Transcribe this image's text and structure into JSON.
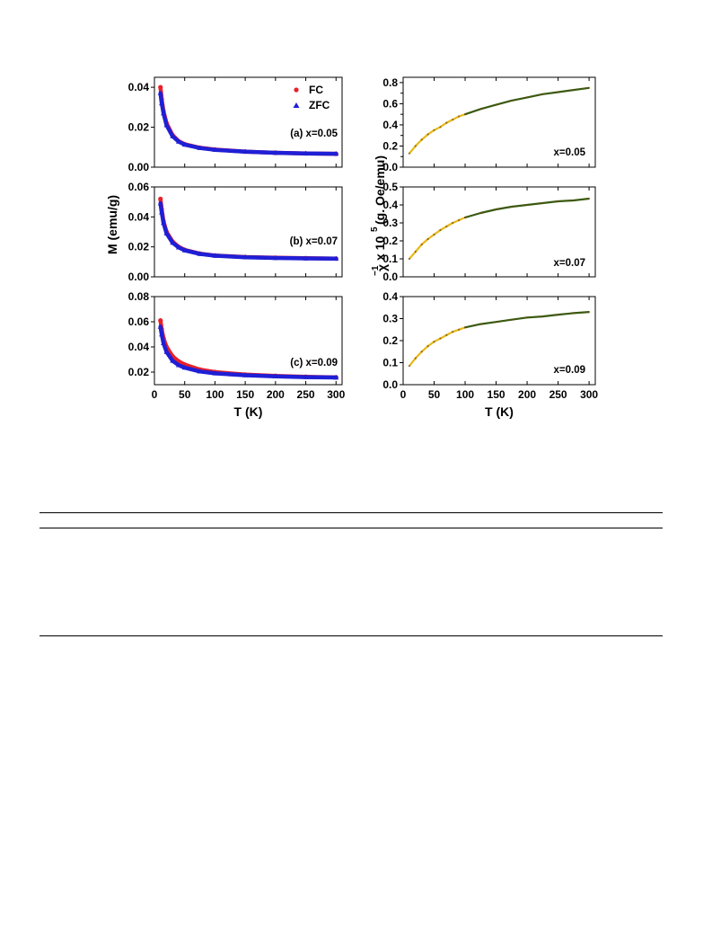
{
  "chart_data": [
    {
      "type": "scatter",
      "panel_label": "(a) x=0.05",
      "xlim": [
        0,
        310
      ],
      "ylim": [
        0,
        0.045
      ],
      "xticks": [
        0,
        50,
        100,
        150,
        200,
        250,
        300
      ],
      "yticks": [
        0.0,
        0.02,
        0.04
      ],
      "ytick_labels": [
        "0.00",
        "0.02",
        "0.04"
      ],
      "show_xtick_labels": false,
      "legend": {
        "position": "top-right",
        "entries": [
          "FC",
          "ZFC"
        ]
      },
      "series": [
        {
          "name": "FC",
          "color": "#e8202a",
          "marker": "circle",
          "x": [
            10,
            12,
            15,
            20,
            30,
            40,
            50,
            75,
            100,
            150,
            200,
            250,
            300
          ],
          "y": [
            0.04,
            0.034,
            0.028,
            0.022,
            0.016,
            0.013,
            0.0115,
            0.0097,
            0.0088,
            0.0078,
            0.0072,
            0.0069,
            0.0067
          ]
        },
        {
          "name": "ZFC",
          "color": "#1f1fd6",
          "marker": "triangle",
          "x": [
            10,
            12,
            15,
            20,
            30,
            40,
            50,
            75,
            100,
            150,
            200,
            250,
            300
          ],
          "y": [
            0.037,
            0.032,
            0.027,
            0.021,
            0.0155,
            0.0128,
            0.0113,
            0.0096,
            0.0087,
            0.0078,
            0.0072,
            0.0069,
            0.0067
          ]
        }
      ]
    },
    {
      "type": "scatter",
      "panel_label": "(b) x=0.07",
      "xlim": [
        0,
        310
      ],
      "ylim": [
        0,
        0.06
      ],
      "xticks": [
        0,
        50,
        100,
        150,
        200,
        250,
        300
      ],
      "yticks": [
        0.0,
        0.02,
        0.04,
        0.06
      ],
      "ytick_labels": [
        "0.00",
        "0.02",
        "0.04",
        "0.06"
      ],
      "show_xtick_labels": false,
      "series": [
        {
          "name": "FC",
          "color": "#e8202a",
          "marker": "circle",
          "x": [
            10,
            12,
            15,
            20,
            30,
            40,
            50,
            75,
            100,
            150,
            200,
            250,
            300
          ],
          "y": [
            0.052,
            0.045,
            0.037,
            0.03,
            0.0235,
            0.02,
            0.018,
            0.0155,
            0.0142,
            0.0132,
            0.0127,
            0.0124,
            0.0122
          ]
        },
        {
          "name": "ZFC",
          "color": "#1f1fd6",
          "marker": "triangle",
          "x": [
            10,
            12,
            15,
            20,
            30,
            40,
            50,
            75,
            100,
            150,
            200,
            250,
            300
          ],
          "y": [
            0.049,
            0.043,
            0.036,
            0.029,
            0.0228,
            0.0196,
            0.0177,
            0.0153,
            0.0141,
            0.0131,
            0.0126,
            0.0123,
            0.0121
          ]
        }
      ]
    },
    {
      "type": "scatter",
      "panel_label": "(c) x=0.09",
      "xlim": [
        0,
        310
      ],
      "ylim": [
        0.01,
        0.08
      ],
      "xticks": [
        0,
        50,
        100,
        150,
        200,
        250,
        300
      ],
      "yticks": [
        0.02,
        0.04,
        0.06,
        0.08
      ],
      "ytick_labels": [
        "0.02",
        "0.04",
        "0.06",
        "0.08"
      ],
      "show_xtick_labels": true,
      "xlabel": "T (K)",
      "series": [
        {
          "name": "FC",
          "color": "#e8202a",
          "marker": "circle",
          "x": [
            10,
            12,
            15,
            20,
            30,
            40,
            50,
            75,
            100,
            150,
            200,
            250,
            300
          ],
          "y": [
            0.061,
            0.054,
            0.047,
            0.04,
            0.0325,
            0.0285,
            0.026,
            0.022,
            0.02,
            0.018,
            0.017,
            0.0163,
            0.0158
          ]
        },
        {
          "name": "ZFC",
          "color": "#1f1fd6",
          "marker": "triangle",
          "x": [
            10,
            12,
            15,
            20,
            30,
            40,
            50,
            75,
            100,
            150,
            200,
            250,
            300
          ],
          "y": [
            0.056,
            0.05,
            0.043,
            0.036,
            0.029,
            0.0255,
            0.0235,
            0.0205,
            0.019,
            0.0175,
            0.0166,
            0.016,
            0.0157
          ]
        }
      ]
    },
    {
      "type": "line",
      "panel_label": "x=0.05",
      "xlim": [
        0,
        310
      ],
      "ylim": [
        0,
        0.85
      ],
      "xticks": [
        0,
        50,
        100,
        150,
        200,
        250,
        300
      ],
      "yticks": [
        0.0,
        0.2,
        0.4,
        0.6,
        0.8
      ],
      "minor_yticks": [
        0.1,
        0.3,
        0.5,
        0.7
      ],
      "ytick_labels": [
        "0.0",
        "0.2",
        "0.4",
        "0.6",
        "0.8"
      ],
      "show_xtick_labels": false,
      "series": [
        {
          "color": "#e8b818",
          "x": [
            10,
            20,
            30,
            40,
            50,
            60,
            70,
            80,
            90,
            100
          ],
          "y": [
            0.13,
            0.2,
            0.26,
            0.31,
            0.35,
            0.38,
            0.42,
            0.45,
            0.48,
            0.5
          ]
        },
        {
          "color": "#3a5a10",
          "x": [
            100,
            125,
            150,
            175,
            200,
            225,
            250,
            275,
            300
          ],
          "y": [
            0.5,
            0.55,
            0.59,
            0.63,
            0.66,
            0.69,
            0.71,
            0.73,
            0.75
          ]
        }
      ]
    },
    {
      "type": "line",
      "panel_label": "x=0.07",
      "xlim": [
        0,
        310
      ],
      "ylim": [
        0,
        0.5
      ],
      "xticks": [
        0,
        50,
        100,
        150,
        200,
        250,
        300
      ],
      "yticks": [
        0.0,
        0.1,
        0.2,
        0.3,
        0.4,
        0.5
      ],
      "ytick_labels": [
        "0.0",
        "0.1",
        "0.2",
        "0.3",
        "0.4",
        "0.5"
      ],
      "show_xtick_labels": false,
      "series": [
        {
          "color": "#e8b818",
          "x": [
            10,
            20,
            30,
            40,
            50,
            60,
            70,
            80,
            90,
            100
          ],
          "y": [
            0.1,
            0.14,
            0.18,
            0.21,
            0.235,
            0.26,
            0.28,
            0.3,
            0.315,
            0.33
          ]
        },
        {
          "color": "#3a5a10",
          "x": [
            100,
            125,
            150,
            175,
            200,
            225,
            250,
            275,
            300
          ],
          "y": [
            0.33,
            0.355,
            0.375,
            0.39,
            0.4,
            0.41,
            0.42,
            0.425,
            0.435
          ]
        }
      ]
    },
    {
      "type": "line",
      "panel_label": "x=0.09",
      "xlim": [
        0,
        310
      ],
      "ylim": [
        0,
        0.4
      ],
      "xticks": [
        0,
        50,
        100,
        150,
        200,
        250,
        300
      ],
      "yticks": [
        0.0,
        0.1,
        0.2,
        0.3,
        0.4
      ],
      "ytick_labels": [
        "0.0",
        "0.1",
        "0.2",
        "0.3",
        "0.4"
      ],
      "show_xtick_labels": true,
      "xlabel": "T (K)",
      "series": [
        {
          "color": "#e8b818",
          "x": [
            10,
            20,
            30,
            40,
            50,
            60,
            70,
            80,
            90,
            100
          ],
          "y": [
            0.085,
            0.12,
            0.15,
            0.175,
            0.195,
            0.21,
            0.225,
            0.24,
            0.25,
            0.26
          ]
        },
        {
          "color": "#3a5a10",
          "x": [
            100,
            125,
            150,
            175,
            200,
            225,
            250,
            275,
            300
          ],
          "y": [
            0.26,
            0.275,
            0.285,
            0.295,
            0.305,
            0.31,
            0.318,
            0.325,
            0.33
          ]
        }
      ]
    }
  ],
  "left_ylabel": "M (emu/g)",
  "right_ylabel": {
    "chi": "χ",
    "minus_one": "−1",
    "times": "x 10",
    "exp": "5",
    "units": "(g. Oe/emu)"
  }
}
